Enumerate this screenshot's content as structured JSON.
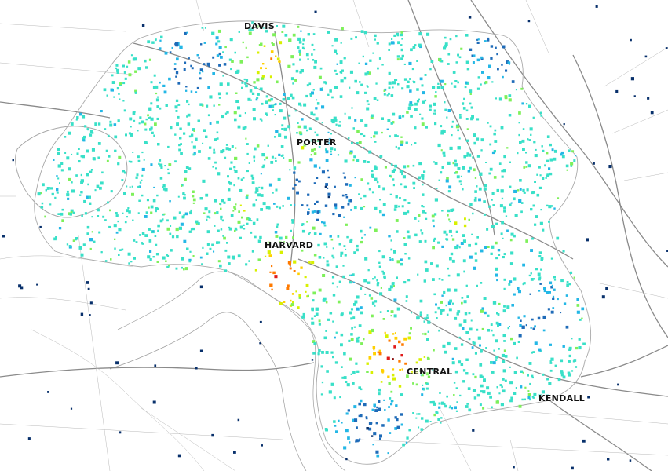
{
  "map": {
    "stations": [
      {
        "id": "davis",
        "label": "DAVIS"
      },
      {
        "id": "porter",
        "label": "PORTER"
      },
      {
        "id": "harvard",
        "label": "HARVARD"
      },
      {
        "id": "central",
        "label": "CENTRAL"
      },
      {
        "id": "kendall",
        "label": "KENDALL"
      }
    ],
    "colors": {
      "background": "#ffffff",
      "roads": "#9c9c9c",
      "color_scale": [
        "#08306b",
        "#1f6bb8",
        "#24b7e6",
        "#39e0c8",
        "#7ef05a",
        "#d8f000",
        "#ffd000",
        "#ff7a00",
        "#e01a1a",
        "#8a0b0b"
      ]
    },
    "legend": "none"
  }
}
